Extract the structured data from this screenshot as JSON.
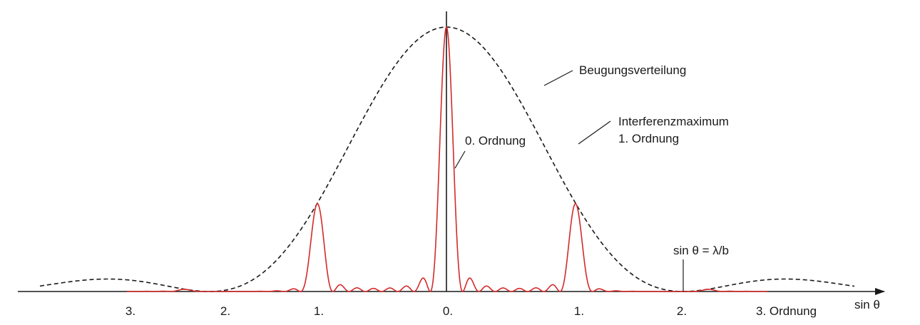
{
  "figure": {
    "x_axis_label": "sin θ",
    "order_ticks": [
      "3.",
      "2.",
      "1.",
      "0.",
      "1.",
      "2.",
      "3. Ordnung"
    ],
    "annotations": {
      "envelope": "Beugungsverteilung",
      "first_max_line1": "Interferenzmaximum",
      "first_max_line2": "1. Ordnung",
      "zeroth_order": "0. Ordnung",
      "first_minimum": "sin θ = λ/b"
    },
    "colors": {
      "interference": "#d42a2a",
      "envelope": "#1a1a1a",
      "axes": "#1a1a1a"
    }
  }
}
